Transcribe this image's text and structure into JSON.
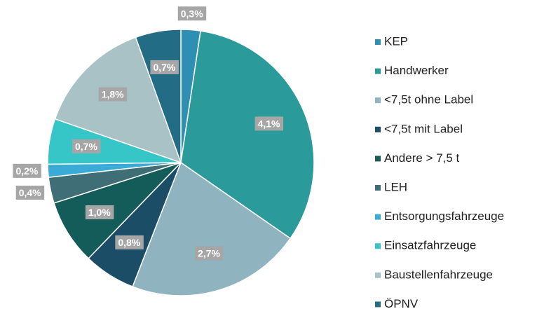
{
  "chart_data": {
    "type": "pie",
    "categories": [
      "KEP",
      "Handwerker",
      "<7,5t ohne Label",
      "<7,5t mit Label",
      "Andere > 7,5 t",
      "LEH",
      "Entsorgungsfahrzeuge",
      "Einsatzfahrzeuge",
      "Baustellenfahrzeuge",
      "ÖPNV"
    ],
    "values": [
      0.3,
      4.1,
      2.7,
      0.8,
      1.0,
      0.4,
      0.2,
      0.7,
      1.8,
      0.7
    ],
    "value_labels": [
      "0,3%",
      "4,1%",
      "2,7%",
      "0,8%",
      "1,0%",
      "0,4%",
      "0,2%",
      "0,7%",
      "1,8%",
      "0,7%"
    ],
    "colors": [
      "#2f8fb3",
      "#2a9a9a",
      "#8fb3bf",
      "#1b4e66",
      "#145c5a",
      "#3f6e77",
      "#3aaad6",
      "#36c6c8",
      "#a9c2c6",
      "#236c85"
    ],
    "legend": "right"
  }
}
